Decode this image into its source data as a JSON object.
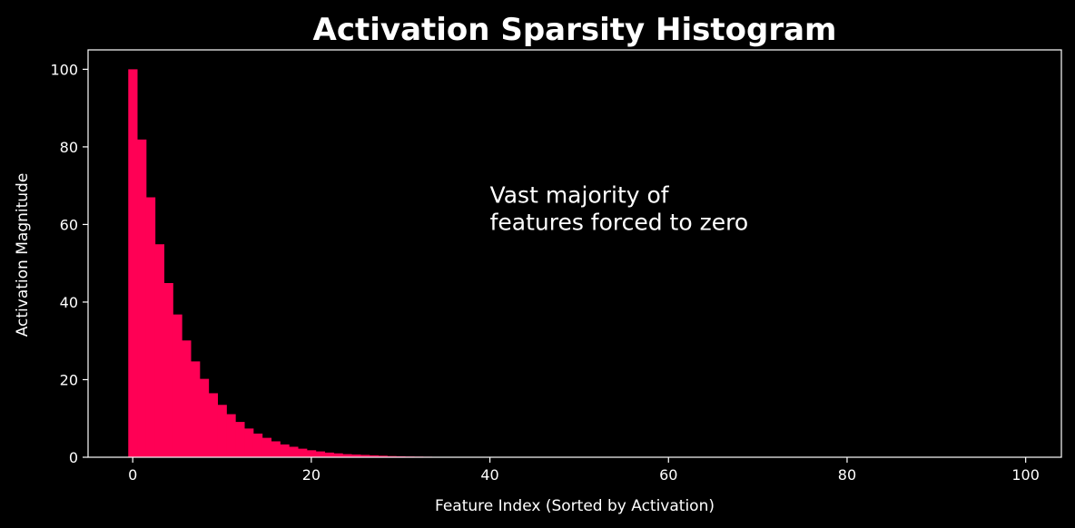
{
  "chart_data": {
    "type": "bar",
    "title": "Activation Sparsity Histogram",
    "xlabel": "Feature Index (Sorted by Activation)",
    "ylabel": "Activation Magnitude",
    "xlim": [
      -5,
      104
    ],
    "ylim": [
      0,
      105
    ],
    "x_ticks": [
      0,
      20,
      40,
      60,
      80,
      100
    ],
    "y_ticks": [
      0,
      20,
      40,
      60,
      80,
      100
    ],
    "x": [
      0,
      1,
      2,
      3,
      4,
      5,
      6,
      7,
      8,
      9,
      10,
      11,
      12,
      13,
      14,
      15,
      16,
      17,
      18,
      19,
      20,
      21,
      22,
      23,
      24,
      25,
      26,
      27,
      28,
      29,
      30,
      31,
      32,
      33,
      34,
      35,
      36,
      37,
      38,
      39,
      40,
      41,
      42,
      43,
      44,
      45,
      46,
      47,
      48,
      49,
      50,
      51,
      52,
      53,
      54,
      55,
      56,
      57,
      58,
      59,
      60,
      61,
      62,
      63,
      64,
      65,
      66,
      67,
      68,
      69,
      70,
      71,
      72,
      73,
      74,
      75,
      76,
      77,
      78,
      79,
      80,
      81,
      82,
      83,
      84,
      85,
      86,
      87,
      88,
      89,
      90,
      91,
      92,
      93,
      94,
      95,
      96,
      97,
      98,
      99
    ],
    "values": [
      100,
      81.9,
      67.0,
      54.9,
      44.9,
      36.8,
      30.1,
      24.7,
      20.2,
      16.5,
      13.5,
      11.1,
      9.1,
      7.4,
      6.1,
      5.0,
      4.1,
      3.3,
      2.7,
      2.2,
      1.8,
      1.5,
      1.2,
      1.0,
      0.8,
      0.7,
      0.6,
      0.5,
      0.4,
      0.3,
      0.25,
      0.2,
      0.17,
      0.14,
      0.11,
      0.09,
      0.07,
      0.06,
      0.05,
      0.04,
      0.03,
      0.03,
      0.02,
      0.02,
      0.01,
      0.01,
      0.01,
      0.01,
      0.01,
      0,
      0,
      0,
      0,
      0,
      0,
      0,
      0,
      0,
      0,
      0,
      0,
      0,
      0,
      0,
      0,
      0,
      0,
      0,
      0,
      0,
      0,
      0,
      0,
      0,
      0,
      0,
      0,
      0,
      0,
      0,
      0,
      0,
      0,
      0,
      0,
      0,
      0,
      0,
      0,
      0,
      0,
      0,
      0,
      0,
      0,
      0,
      0,
      0,
      0,
      0
    ],
    "bar_color": "#ff0055",
    "background": "#000000",
    "foreground": "#ffffff",
    "annotation": {
      "lines": [
        "Vast majority of",
        "features forced to zero"
      ],
      "x": 40,
      "y": 60
    },
    "grid": false
  }
}
